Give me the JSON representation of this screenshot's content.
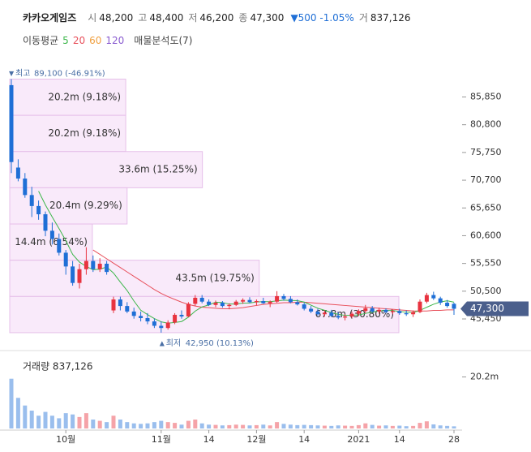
{
  "header": {
    "name": "카카오게임즈",
    "items": [
      {
        "label": "시",
        "value": "48,200"
      },
      {
        "label": "고",
        "value": "48,400"
      },
      {
        "label": "저",
        "value": "46,200"
      },
      {
        "label": "종",
        "value": "47,300"
      },
      {
        "label": "",
        "value": "▼500 -1.05%"
      },
      {
        "label": "거",
        "value": "837,126"
      }
    ]
  },
  "legend": {
    "title": "이동평균",
    "items": [
      {
        "label": "5",
        "color": "#3cb64a"
      },
      {
        "label": "20",
        "color": "#e8505b"
      },
      {
        "label": "60",
        "color": "#f0a040"
      },
      {
        "label": "120",
        "color": "#8a5cd0"
      }
    ],
    "extra": "매물분석도(7)"
  },
  "chart_data": {
    "type": "candlestick",
    "categories": [
      null,
      null,
      null,
      null,
      null,
      null,
      null,
      null,
      "10월",
      null,
      null,
      null,
      null,
      null,
      null,
      null,
      null,
      null,
      null,
      null,
      null,
      null,
      "11월",
      null,
      null,
      null,
      null,
      null,
      null,
      "14",
      null,
      null,
      null,
      null,
      null,
      null,
      "12월",
      null,
      null,
      null,
      null,
      null,
      null,
      "14",
      null,
      null,
      null,
      null,
      null,
      null,
      null,
      "2021",
      null,
      null,
      null,
      null,
      null,
      "14",
      null,
      null,
      null,
      null,
      null,
      null,
      null,
      "28"
    ],
    "candles": [
      [
        88000,
        89100,
        72000,
        74000
      ],
      [
        73000,
        74500,
        70500,
        71000
      ],
      [
        71000,
        72000,
        67500,
        68000
      ],
      [
        68000,
        69500,
        64000,
        66000
      ],
      [
        66000,
        67000,
        63500,
        64500
      ],
      [
        64500,
        65000,
        60500,
        61500
      ],
      [
        61500,
        63000,
        59000,
        60000
      ],
      [
        60000,
        61000,
        57000,
        57500
      ],
      [
        57500,
        58000,
        53500,
        55000
      ],
      [
        55000,
        56000,
        51500,
        52000
      ],
      [
        52000,
        55500,
        51000,
        54500
      ],
      [
        54500,
        58500,
        53500,
        56000
      ],
      [
        56000,
        57000,
        54000,
        54500
      ],
      [
        54500,
        56500,
        54000,
        55500
      ],
      [
        55500,
        56000,
        53500,
        54000
      ],
      [
        47000,
        49500,
        46500,
        49000
      ],
      [
        49000,
        49500,
        47000,
        47800
      ],
      [
        47800,
        48500,
        46500,
        46800
      ],
      [
        46800,
        47500,
        45500,
        46000
      ],
      [
        46000,
        46800,
        45000,
        45600
      ],
      [
        45600,
        46500,
        44500,
        45000
      ],
      [
        45000,
        45500,
        43800,
        44200
      ],
      [
        44200,
        45000,
        42950,
        43800
      ],
      [
        43800,
        45200,
        43500,
        44800
      ],
      [
        44800,
        46500,
        44500,
        46200
      ],
      [
        46200,
        47000,
        45500,
        45900
      ],
      [
        45900,
        48500,
        45800,
        48200
      ],
      [
        48200,
        49800,
        47800,
        49300
      ],
      [
        49300,
        49800,
        48300,
        48600
      ],
      [
        48600,
        49000,
        47800,
        48000
      ],
      [
        48000,
        48800,
        47600,
        48400
      ],
      [
        48400,
        48700,
        47500,
        47800
      ],
      [
        47800,
        48300,
        47200,
        48000
      ],
      [
        48000,
        48900,
        47800,
        48600
      ],
      [
        48600,
        49200,
        48200,
        48900
      ],
      [
        48900,
        49400,
        48300,
        48500
      ],
      [
        48500,
        49000,
        47900,
        48700
      ],
      [
        48700,
        49300,
        48200,
        48300
      ],
      [
        48300,
        48800,
        47600,
        48600
      ],
      [
        48600,
        50500,
        48400,
        49600
      ],
      [
        49600,
        50000,
        48800,
        49100
      ],
      [
        49100,
        49600,
        48300,
        48500
      ],
      [
        48500,
        49000,
        47900,
        48100
      ],
      [
        48100,
        48400,
        47000,
        47300
      ],
      [
        47300,
        47800,
        46500,
        46800
      ],
      [
        46800,
        47300,
        46000,
        46300
      ],
      [
        46300,
        47000,
        45900,
        46600
      ],
      [
        46600,
        47100,
        45800,
        46000
      ],
      [
        46000,
        46700,
        45400,
        45700
      ],
      [
        45700,
        46300,
        45200,
        45900
      ],
      [
        45900,
        46800,
        45600,
        46400
      ],
      [
        46400,
        47200,
        46000,
        46900
      ],
      [
        46900,
        48000,
        46500,
        47400
      ],
      [
        47400,
        47800,
        46600,
        46800
      ],
      [
        46800,
        47500,
        46400,
        47100
      ],
      [
        47100,
        47400,
        46500,
        46700
      ],
      [
        46700,
        47200,
        46300,
        46900
      ],
      [
        46900,
        47300,
        46200,
        46500
      ],
      [
        46500,
        47000,
        46000,
        46300
      ],
      [
        46300,
        47000,
        45800,
        46700
      ],
      [
        46700,
        49000,
        46500,
        48600
      ],
      [
        48600,
        50200,
        48300,
        49800
      ],
      [
        49800,
        50400,
        48900,
        49200
      ],
      [
        49200,
        49500,
        48000,
        48400
      ],
      [
        48400,
        48900,
        47500,
        47800
      ],
      [
        48200,
        48400,
        46200,
        47300
      ]
    ],
    "ma5": [
      null,
      null,
      null,
      null,
      68700,
      66200,
      64000,
      61900,
      59700,
      57200,
      55800,
      55000,
      54400,
      54500,
      54900,
      53800,
      52160,
      50620,
      48720,
      47040,
      46240,
      45520,
      44920,
      44680,
      44800,
      44980,
      45780,
      46880,
      47640,
      48000,
      48500,
      48420,
      48160,
      48160,
      48340,
      48360,
      48540,
      48600,
      48600,
      48740,
      48860,
      48820,
      48780,
      48520,
      47960,
      47400,
      47020,
      46600,
      46280,
      46100,
      46120,
      46180,
      46460,
      46680,
      46920,
      46980,
      46980,
      46800,
      46700,
      46620,
      47000,
      47580,
      48120,
      48540,
      48760,
      48500
    ],
    "ma20": [
      null,
      null,
      null,
      null,
      null,
      null,
      null,
      null,
      null,
      null,
      null,
      null,
      58000,
      57200,
      56400,
      55600,
      54800,
      54000,
      53200,
      52400,
      51600,
      50800,
      50100,
      49500,
      49000,
      48500,
      48100,
      47800,
      47600,
      47500,
      47400,
      47300,
      47300,
      47400,
      47500,
      47700,
      47900,
      48100,
      48200,
      48300,
      48400,
      48400,
      48500,
      48500,
      48400,
      48300,
      48200,
      48100,
      48000,
      47900,
      47800,
      47700,
      47600,
      47500,
      47400,
      47300,
      47200,
      47100,
      47000,
      46900,
      46900,
      46900,
      47000,
      47000,
      47100,
      47100
    ],
    "volume": [
      19500000,
      12000000,
      9000000,
      7000000,
      5000000,
      6500000,
      5000000,
      4000000,
      6000000,
      5500000,
      4500000,
      6000000,
      3500000,
      3000000,
      2500000,
      5000000,
      3500000,
      2500000,
      2000000,
      1800000,
      2000000,
      2500000,
      3000000,
      2500000,
      2200000,
      1500000,
      3000000,
      3500000,
      2000000,
      1500000,
      1400000,
      1200000,
      1300000,
      1500000,
      1400000,
      1200000,
      1300000,
      1500000,
      1200000,
      2500000,
      1800000,
      1500000,
      1300000,
      1400000,
      1300000,
      1200000,
      1100000,
      1000000,
      1200000,
      1100000,
      1000000,
      1300000,
      2000000,
      1400000,
      1100000,
      1200000,
      1000000,
      1100000,
      900000,
      1000000,
      2200000,
      2800000,
      1600000,
      1200000,
      1000000,
      837126
    ],
    "ylim": [
      42500,
      90500
    ],
    "yticks": [
      {
        "value": 85850,
        "label": "85,850"
      },
      {
        "value": 80800,
        "label": "80,800"
      },
      {
        "value": 75750,
        "label": "75,750"
      },
      {
        "value": 70700,
        "label": "70,700"
      },
      {
        "value": 65650,
        "label": "65,650"
      },
      {
        "value": 60600,
        "label": "60,600"
      },
      {
        "value": 55550,
        "label": "55,550"
      },
      {
        "value": 50500,
        "label": "50,500"
      },
      {
        "value": 45450,
        "label": "45,450"
      }
    ],
    "last_price": {
      "value": 47300,
      "label": "47,300"
    },
    "high": {
      "label": "최고",
      "value": 89100,
      "text": "89,100 (-46.91%)"
    },
    "low": {
      "label": "최저",
      "value": 42950,
      "text": "42,950 (10.13%)"
    },
    "volume_profile": [
      {
        "label": "20.2m (9.18%)",
        "percent": 9.18
      },
      {
        "label": "20.2m (9.18%)",
        "percent": 9.18
      },
      {
        "label": "33.6m (15.25%)",
        "percent": 15.25
      },
      {
        "label": "20.4m (9.29%)",
        "percent": 9.29
      },
      {
        "label": "14.4m (6.54%)",
        "percent": 6.54
      },
      {
        "label": "43.5m (19.75%)",
        "percent": 19.75
      },
      {
        "label": "67.8m (30.80%)",
        "percent": 30.8
      }
    ],
    "volume_title": "거래량 837,126",
    "volume_ylim": [
      0,
      28000000
    ],
    "volume_yticks": [
      {
        "value": 20200000,
        "label": "20.2m"
      }
    ],
    "up_color": "#e8333f",
    "down_color": "#1f6fd6"
  }
}
